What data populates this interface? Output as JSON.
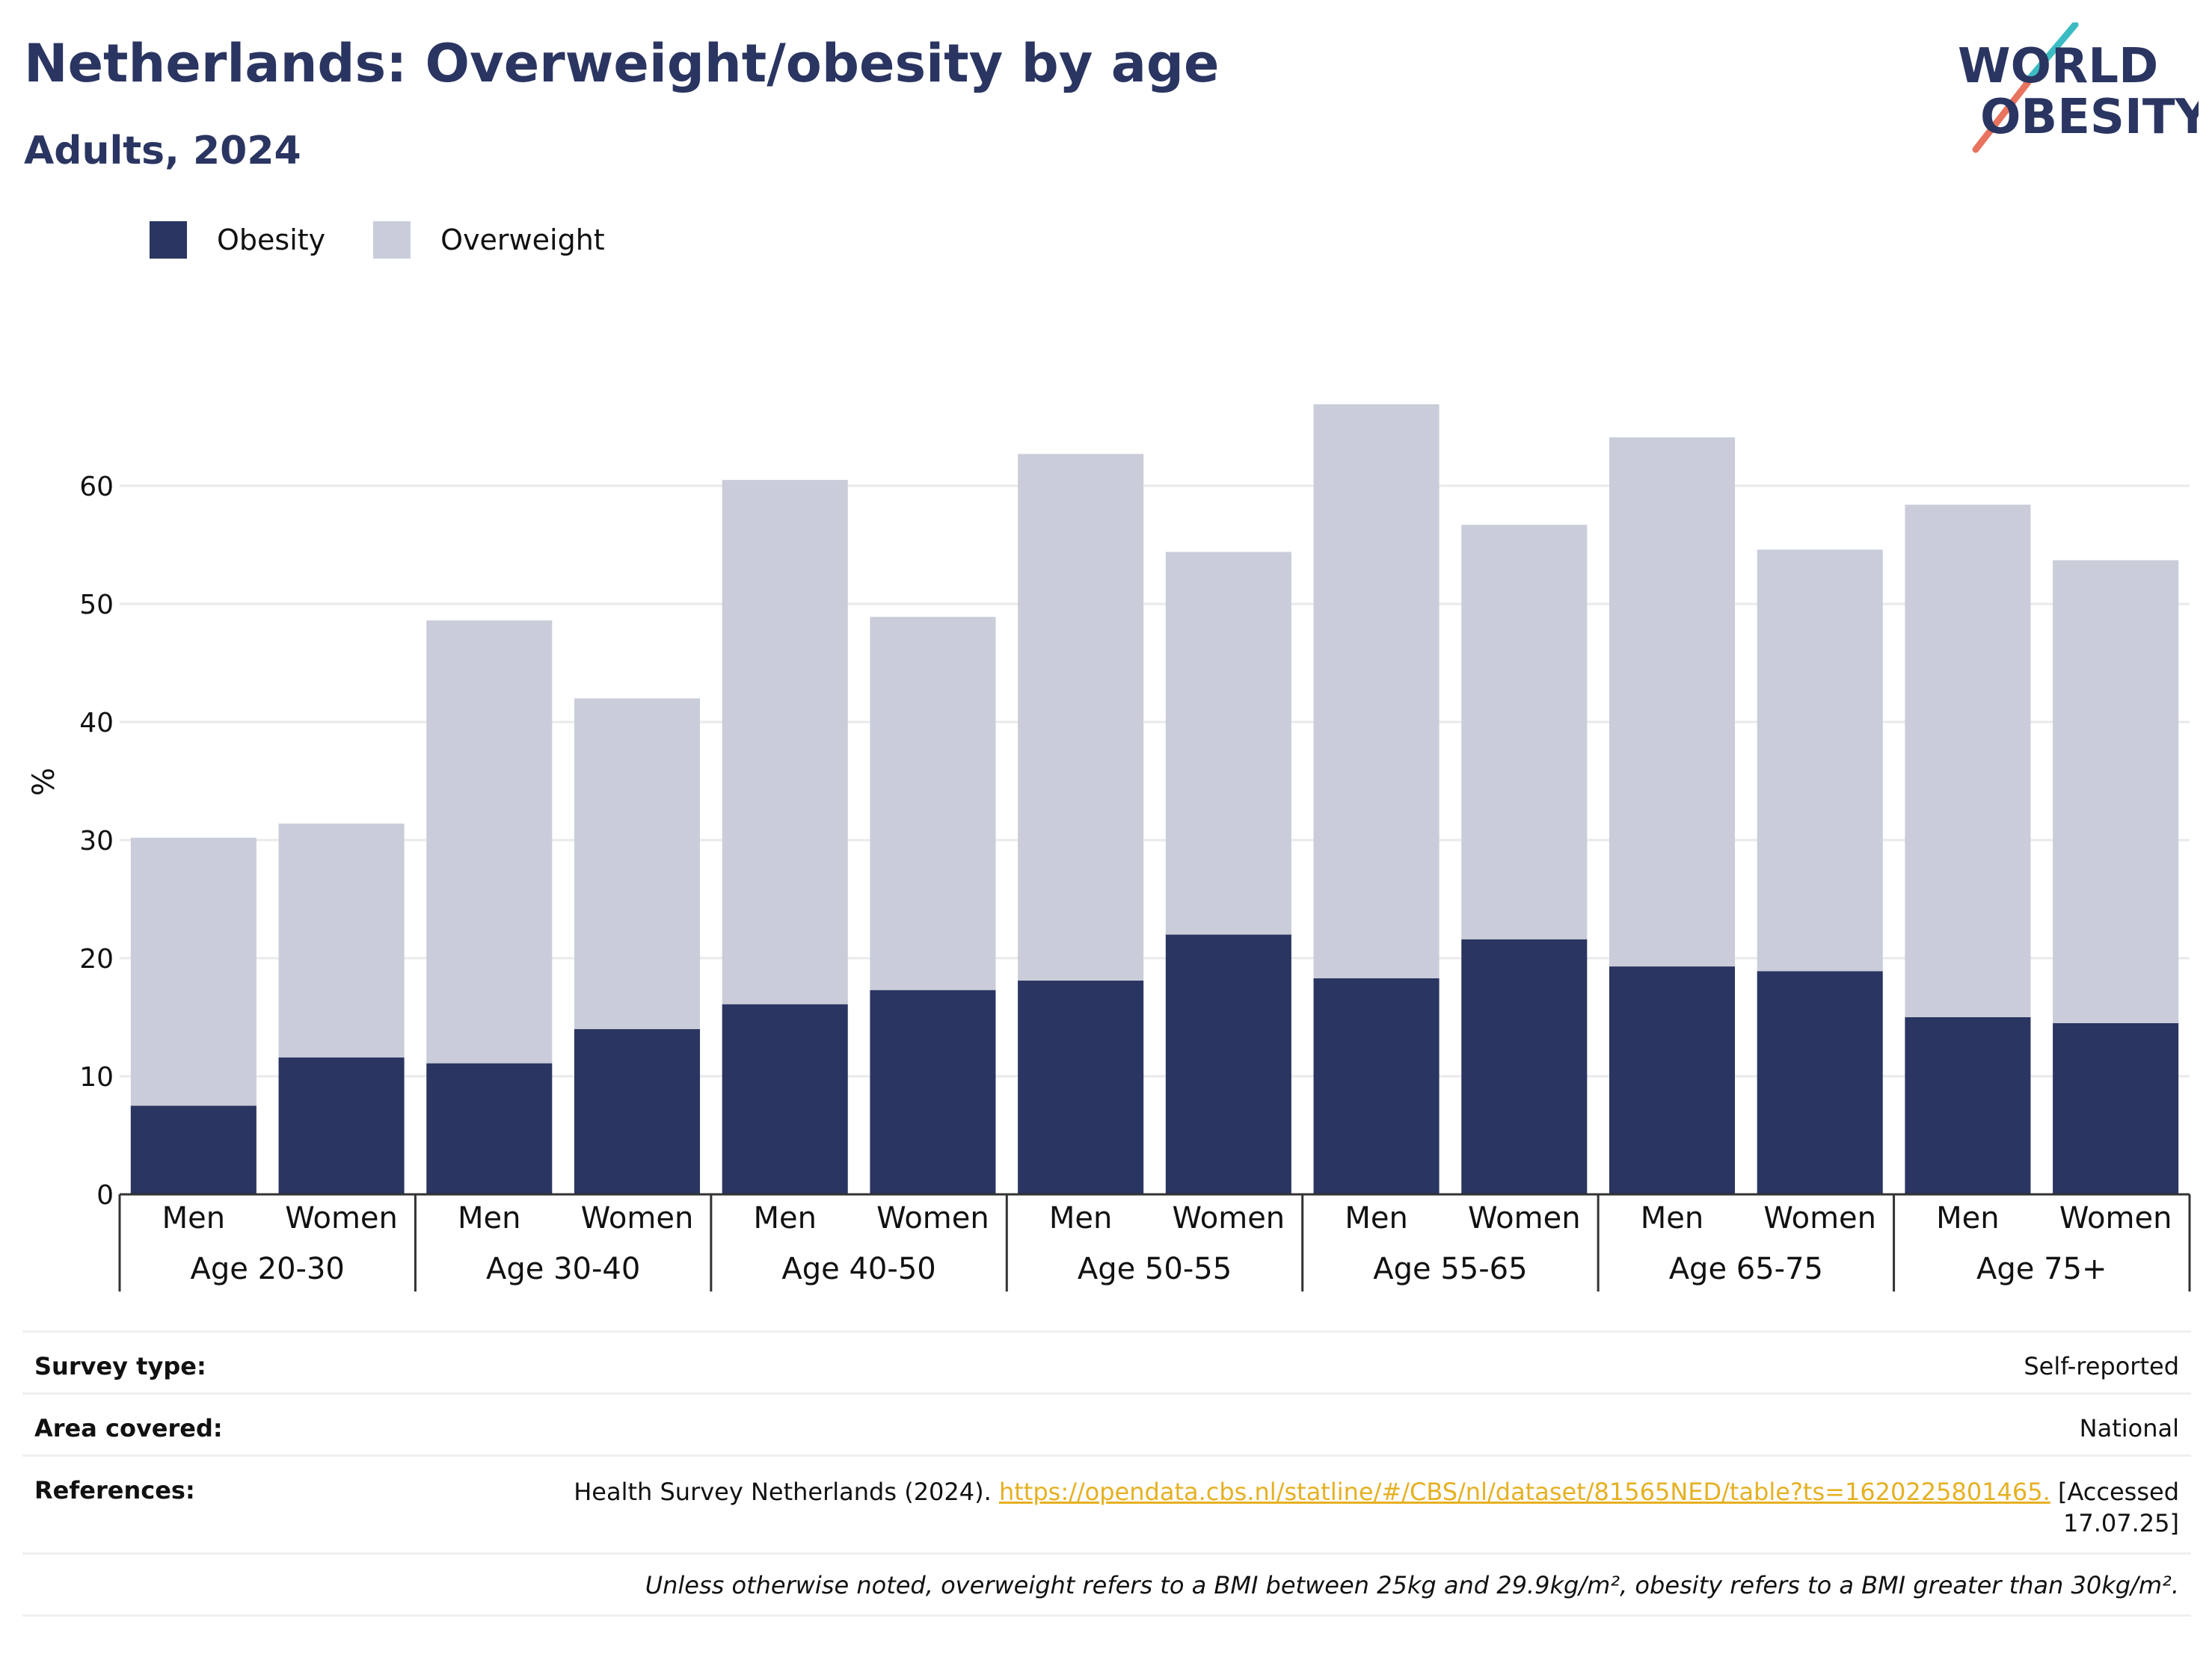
{
  "title": "Netherlands: Overweight/obesity by age",
  "subtitle": "Adults, 2024",
  "logo": {
    "line1": "WORLD",
    "line2": "OBESITY"
  },
  "colors": {
    "obesity": "#2a3561",
    "overweight": "#cacdd9",
    "title": "#2a3561",
    "link": "#e5b022",
    "grid": "#e8eaed"
  },
  "chart_data": {
    "type": "bar",
    "stacked": true,
    "ylabel": "%",
    "ylim": [
      0,
      70
    ],
    "yticks": [
      0,
      10,
      20,
      30,
      40,
      50,
      60
    ],
    "groups": [
      "Age 20-30",
      "Age 30-40",
      "Age 40-50",
      "Age 50-55",
      "Age 55-65",
      "Age 65-75",
      "Age 75+"
    ],
    "sexes": [
      "Men",
      "Women"
    ],
    "series": [
      {
        "name": "Obesity",
        "values": [
          7.5,
          11.6,
          11.1,
          14.0,
          16.1,
          17.3,
          18.1,
          22.0,
          18.3,
          21.6,
          19.3,
          18.9,
          15.0,
          14.5
        ]
      },
      {
        "name": "Overweight",
        "values": [
          22.7,
          19.8,
          37.5,
          28.0,
          44.4,
          31.6,
          44.6,
          32.4,
          48.6,
          35.1,
          44.8,
          35.7,
          43.4,
          39.2
        ]
      }
    ],
    "legend": "top-left",
    "grid": true
  },
  "meta": {
    "survey_label": "Survey type:",
    "survey_value": "Self-reported",
    "area_label": "Area covered:",
    "area_value": "National",
    "refs_label": "References:",
    "refs_text": "Health Survey Netherlands (2024).",
    "refs_link": "https://opendata.cbs.nl/statline/#/CBS/nl/dataset/81565NED/table?ts=1620225801465.",
    "refs_accessed": "[Accessed 17.07.25]",
    "note": "Unless otherwise noted, overweight refers to a BMI between 25kg and 29.9kg/m², obesity refers to a BMI greater than 30kg/m²."
  }
}
